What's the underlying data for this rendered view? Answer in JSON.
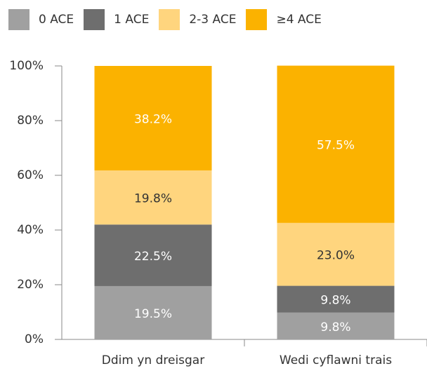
{
  "chart_data": {
    "type": "stacked_bar",
    "categories": [
      "Ddim yn dreisgar",
      "Wedi cyflawni trais"
    ],
    "series": [
      {
        "name": "0 ACE",
        "color": "#a0a0a0",
        "values": [
          19.5,
          9.8
        ],
        "value_labels": [
          "19.5%",
          "9.8%"
        ]
      },
      {
        "name": "1 ACE",
        "color": "#6e6e6e",
        "values": [
          22.5,
          9.8
        ],
        "value_labels": [
          "22.5%",
          "9.8%"
        ]
      },
      {
        "name": "2-3 ACE",
        "color": "#ffd57e",
        "values": [
          19.8,
          23.0
        ],
        "value_labels": [
          "19.8%",
          "23.0%"
        ]
      },
      {
        "name": "≥4 ACE",
        "color": "#fbb200",
        "values": [
          38.2,
          57.5
        ],
        "value_labels": [
          "38.2%",
          "57.5%"
        ]
      }
    ],
    "ylim": [
      0,
      100
    ],
    "yticks": [
      {
        "value": 0,
        "label": "0%"
      },
      {
        "value": 20,
        "label": "20%"
      },
      {
        "value": 40,
        "label": "40%"
      },
      {
        "value": 60,
        "label": "60%"
      },
      {
        "value": 80,
        "label": "80%"
      },
      {
        "value": 100,
        "label": "100%"
      }
    ],
    "legend": "top"
  }
}
